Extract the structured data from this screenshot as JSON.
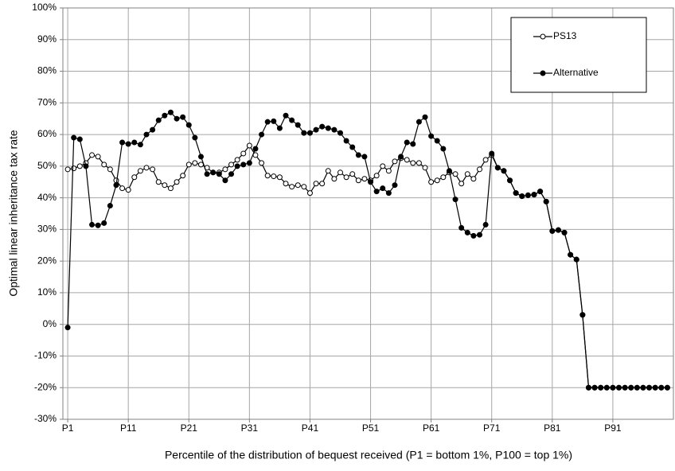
{
  "chart_data": {
    "type": "line",
    "x_label": "Percentile of the distribution of bequest received (P1 = bottom 1%, P100 = top 1%)",
    "y_label": "Optimal linear inheritance tax rate",
    "x": [
      1,
      2,
      3,
      4,
      5,
      6,
      7,
      8,
      9,
      10,
      11,
      12,
      13,
      14,
      15,
      16,
      17,
      18,
      19,
      20,
      21,
      22,
      23,
      24,
      25,
      26,
      27,
      28,
      29,
      30,
      31,
      32,
      33,
      34,
      35,
      36,
      37,
      38,
      39,
      40,
      41,
      42,
      43,
      44,
      45,
      46,
      47,
      48,
      49,
      50,
      51,
      52,
      53,
      54,
      55,
      56,
      57,
      58,
      59,
      60,
      61,
      62,
      63,
      64,
      65,
      66,
      67,
      68,
      69,
      70,
      71,
      72,
      73,
      74,
      75,
      76,
      77,
      78,
      79,
      80,
      81,
      82,
      83,
      84,
      85,
      86,
      87,
      88,
      89,
      90,
      91,
      92,
      93,
      94,
      95,
      96,
      97,
      98,
      99,
      100
    ],
    "xlim": [
      0.2,
      101
    ],
    "xticks": [
      {
        "value": 1,
        "label": "P1"
      },
      {
        "value": 11,
        "label": "P11"
      },
      {
        "value": 21,
        "label": "P21"
      },
      {
        "value": 31,
        "label": "P31"
      },
      {
        "value": 41,
        "label": "P41"
      },
      {
        "value": 51,
        "label": "P51"
      },
      {
        "value": 61,
        "label": "P61"
      },
      {
        "value": 71,
        "label": "P71"
      },
      {
        "value": 81,
        "label": "P81"
      },
      {
        "value": 91,
        "label": "P91"
      }
    ],
    "ylim": [
      -30,
      100
    ],
    "yticks": [
      {
        "value": -30,
        "label": "-30%"
      },
      {
        "value": -20,
        "label": "-20%"
      },
      {
        "value": -10,
        "label": "-10%"
      },
      {
        "value": 0,
        "label": "0%"
      },
      {
        "value": 10,
        "label": "10%"
      },
      {
        "value": 20,
        "label": "20%"
      },
      {
        "value": 30,
        "label": "30%"
      },
      {
        "value": 40,
        "label": "40%"
      },
      {
        "value": 50,
        "label": "50%"
      },
      {
        "value": 60,
        "label": "60%"
      },
      {
        "value": 70,
        "label": "70%"
      },
      {
        "value": 80,
        "label": "80%"
      },
      {
        "value": 90,
        "label": "90%"
      },
      {
        "value": 100,
        "label": "100%"
      }
    ],
    "grid": true,
    "legend": "upper right",
    "series": [
      {
        "name": "PS13",
        "color": "#000000",
        "marker": "open",
        "values": [
          49,
          49.3,
          50,
          51,
          53.5,
          53,
          50.5,
          49,
          45.5,
          43,
          42.5,
          46.5,
          48.5,
          49.5,
          49,
          45,
          44,
          43,
          45,
          47,
          50.5,
          51,
          50.5,
          49.5,
          48,
          48,
          49,
          50.5,
          52,
          54,
          56.5,
          53.5,
          51,
          47,
          46.8,
          46.5,
          44.5,
          43.5,
          44,
          43.5,
          41.5,
          44.5,
          44.5,
          48.5,
          46,
          48,
          46.5,
          47.5,
          45.5,
          46,
          45.5,
          47,
          50,
          48.5,
          51.5,
          52.5,
          52,
          51,
          51,
          49.5,
          45,
          45.5,
          46.5,
          48,
          47.5,
          44.5,
          47.5,
          46,
          49,
          52,
          53.5,
          49.5,
          48.5,
          45.5,
          41.5,
          40.5,
          40.8,
          41,
          42,
          38.8,
          29.5,
          29.8,
          29,
          22,
          20.5,
          3,
          -20,
          -20,
          -20,
          -20,
          -20,
          -20,
          -20,
          -20,
          -20,
          -20,
          -20,
          -20,
          -20,
          -20
        ]
      },
      {
        "name": "Alternative",
        "color": "#000000",
        "marker": "filled",
        "values": [
          -1,
          59,
          58.5,
          50,
          31.5,
          31.3,
          32,
          37.5,
          44,
          57.5,
          57,
          57.5,
          56.8,
          60,
          61.5,
          64.5,
          66,
          67,
          65,
          65.5,
          63,
          59,
          53,
          47.5,
          48,
          47.5,
          45.5,
          47.5,
          50,
          50.5,
          51,
          55.5,
          60,
          64,
          64.2,
          62,
          66,
          64.5,
          63,
          60.5,
          60.5,
          61.5,
          62.5,
          62,
          61.5,
          60.5,
          58,
          56,
          53.5,
          53,
          45,
          42,
          43,
          41.5,
          44,
          53,
          57.5,
          57,
          64,
          65.5,
          59.5,
          58,
          55.5,
          48.5,
          39.5,
          30.5,
          29,
          28,
          28.3,
          31.5,
          54,
          49.5,
          48.5,
          45.5,
          41.5,
          40.5,
          40.8,
          41,
          42,
          38.8,
          29.5,
          29.8,
          29,
          22,
          20.5,
          3,
          -20,
          -20,
          -20,
          -20,
          -20,
          -20,
          -20,
          -20,
          -20,
          -20,
          -20,
          -20,
          -20,
          -20
        ]
      }
    ]
  }
}
